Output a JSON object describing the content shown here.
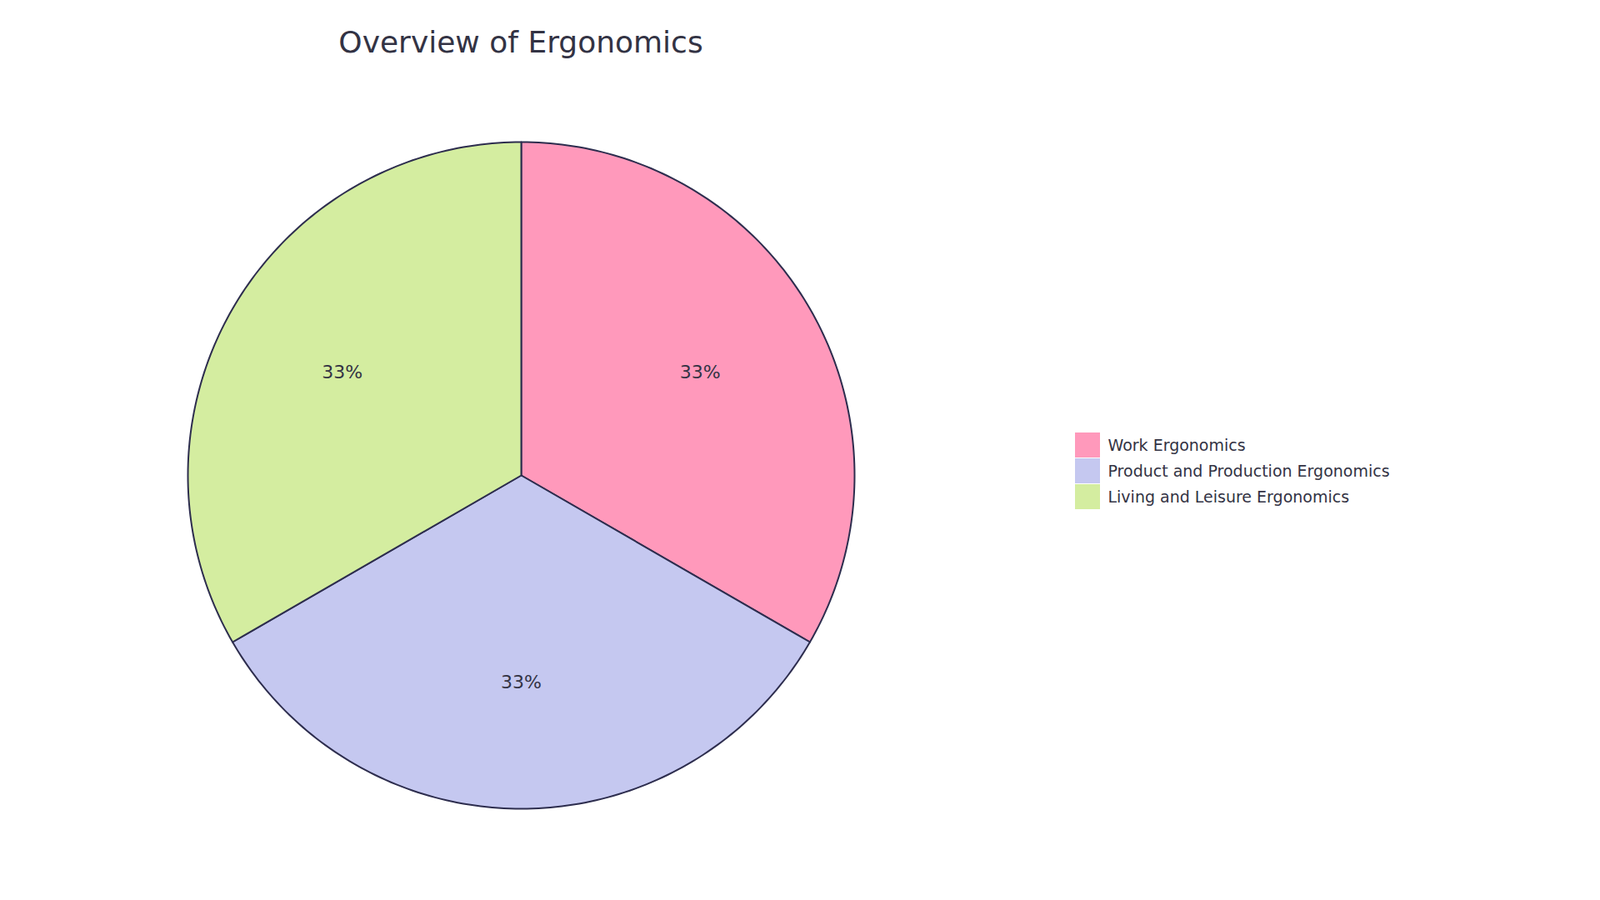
{
  "chart_data": {
    "type": "pie",
    "title": "Overview of Ergonomics",
    "categories": [
      "Work Ergonomics",
      "Product and Production Ergonomics",
      "Living and Leisure Ergonomics"
    ],
    "values": [
      33,
      33,
      33
    ],
    "value_labels": [
      "33%",
      "33%",
      "33%"
    ],
    "colors": [
      "#FF99BB",
      "#C5C8F0",
      "#D4EDA0"
    ],
    "data_labels": true,
    "legend": "right"
  }
}
